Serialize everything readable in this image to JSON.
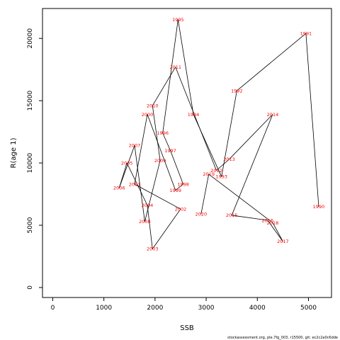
{
  "chart_data": {
    "type": "line",
    "xlabel": "SSB",
    "ylabel": "R(age 1)",
    "xlim": [
      -200,
      5450
    ],
    "ylim": [
      -800,
      22400
    ],
    "xticks": [
      0,
      1000,
      2000,
      3000,
      4000,
      5000
    ],
    "yticks": [
      0,
      5000,
      10000,
      15000,
      20000
    ],
    "line_color": "#000000",
    "label_color": "#ff0000",
    "points": [
      {
        "year": "1990",
        "x": 5200,
        "y": 6500
      },
      {
        "year": "1991",
        "x": 4950,
        "y": 20400
      },
      {
        "year": "1992",
        "x": 3600,
        "y": 15800
      },
      {
        "year": "1993",
        "x": 3300,
        "y": 8900
      },
      {
        "year": "1994",
        "x": 2750,
        "y": 13900
      },
      {
        "year": "1995",
        "x": 2450,
        "y": 21500
      },
      {
        "year": "1996",
        "x": 2150,
        "y": 12400
      },
      {
        "year": "1997",
        "x": 2300,
        "y": 11000
      },
      {
        "year": "1998",
        "x": 2550,
        "y": 8300
      },
      {
        "year": "1999",
        "x": 2400,
        "y": 7800
      },
      {
        "year": "2000",
        "x": 1850,
        "y": 13900
      },
      {
        "year": "2001",
        "x": 1600,
        "y": 8300
      },
      {
        "year": "2002",
        "x": 2500,
        "y": 6300
      },
      {
        "year": "2003",
        "x": 1950,
        "y": 3100
      },
      {
        "year": "2004",
        "x": 1850,
        "y": 6600
      },
      {
        "year": "2005",
        "x": 1450,
        "y": 10000
      },
      {
        "year": "2006",
        "x": 1300,
        "y": 8000
      },
      {
        "year": "2007",
        "x": 1600,
        "y": 11400
      },
      {
        "year": "2008",
        "x": 1800,
        "y": 5300
      },
      {
        "year": "2009",
        "x": 2100,
        "y": 10200
      },
      {
        "year": "2010",
        "x": 1950,
        "y": 14600
      },
      {
        "year": "2011",
        "x": 2400,
        "y": 17700
      },
      {
        "year": "2012",
        "x": 3200,
        "y": 9400
      },
      {
        "year": "2013",
        "x": 3450,
        "y": 10300
      },
      {
        "year": "2014",
        "x": 4300,
        "y": 13900
      },
      {
        "year": "2015",
        "x": 3500,
        "y": 5800
      },
      {
        "year": "2016",
        "x": 4200,
        "y": 5400
      },
      {
        "year": "2017",
        "x": 4500,
        "y": 3700
      },
      {
        "year": "2018",
        "x": 4300,
        "y": 5200
      },
      {
        "year": "2019",
        "x": 3050,
        "y": 9100
      },
      {
        "year": "2020",
        "x": 2900,
        "y": 5900
      }
    ]
  },
  "footer": {
    "text": "stockassessment.org, ple.7fg_003, r15500, git: ec2c2a0c6dde"
  }
}
